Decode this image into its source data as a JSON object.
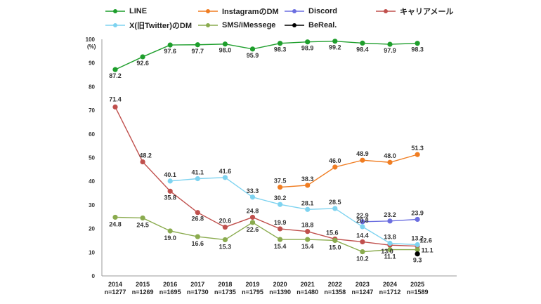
{
  "chart_data": {
    "type": "line",
    "ylabel": "(%)",
    "ylim": [
      0,
      100
    ],
    "yticks": [
      0,
      10,
      20,
      30,
      40,
      50,
      60,
      70,
      80,
      90,
      100
    ],
    "x": [
      "2014",
      "2015",
      "2016",
      "2017",
      "2018",
      "2019",
      "2020",
      "2021",
      "2022",
      "2023",
      "2024",
      "2025"
    ],
    "n": [
      "n=1277",
      "n=1269",
      "n=1695",
      "n=1730",
      "n=1735",
      "n=1795",
      "n=1390",
      "n=1480",
      "n=1358",
      "n=1247",
      "n=1712",
      "n=1589"
    ],
    "legend_position": "top",
    "grid": false,
    "series": [
      {
        "name": "LINE",
        "color": "#1e9e2c",
        "values": [
          87.2,
          92.6,
          97.6,
          97.7,
          98.0,
          95.9,
          98.3,
          98.9,
          99.2,
          98.4,
          97.9,
          98.3
        ]
      },
      {
        "name": "InstagramのDM",
        "color": "#f07d22",
        "values": [
          null,
          null,
          null,
          null,
          null,
          null,
          37.5,
          38.3,
          46.0,
          48.9,
          48.0,
          51.3
        ]
      },
      {
        "name": "Discord",
        "color": "#6b6ee0",
        "values": [
          null,
          null,
          null,
          null,
          null,
          null,
          null,
          null,
          null,
          22.9,
          23.2,
          23.9
        ]
      },
      {
        "name": "キャリアメール",
        "color": "#c0504d",
        "values": [
          71.4,
          48.2,
          35.8,
          26.8,
          20.6,
          24.8,
          19.9,
          18.8,
          15.6,
          14.4,
          13.0,
          12.6
        ]
      },
      {
        "name": "X(旧Twitter)のDM",
        "color": "#7ed3f0",
        "values": [
          null,
          null,
          40.1,
          41.1,
          41.6,
          33.3,
          30.2,
          28.1,
          28.5,
          20.8,
          13.8,
          13.2
        ]
      },
      {
        "name": "SMS/iMessege",
        "color": "#8aab4e",
        "values": [
          24.8,
          24.5,
          19.0,
          16.6,
          15.3,
          22.6,
          15.4,
          15.4,
          15.0,
          10.2,
          11.1,
          11.1
        ]
      },
      {
        "name": "BeReal.",
        "color": "#000000",
        "values": [
          null,
          null,
          null,
          null,
          null,
          null,
          null,
          null,
          null,
          null,
          null,
          9.3
        ]
      }
    ]
  }
}
